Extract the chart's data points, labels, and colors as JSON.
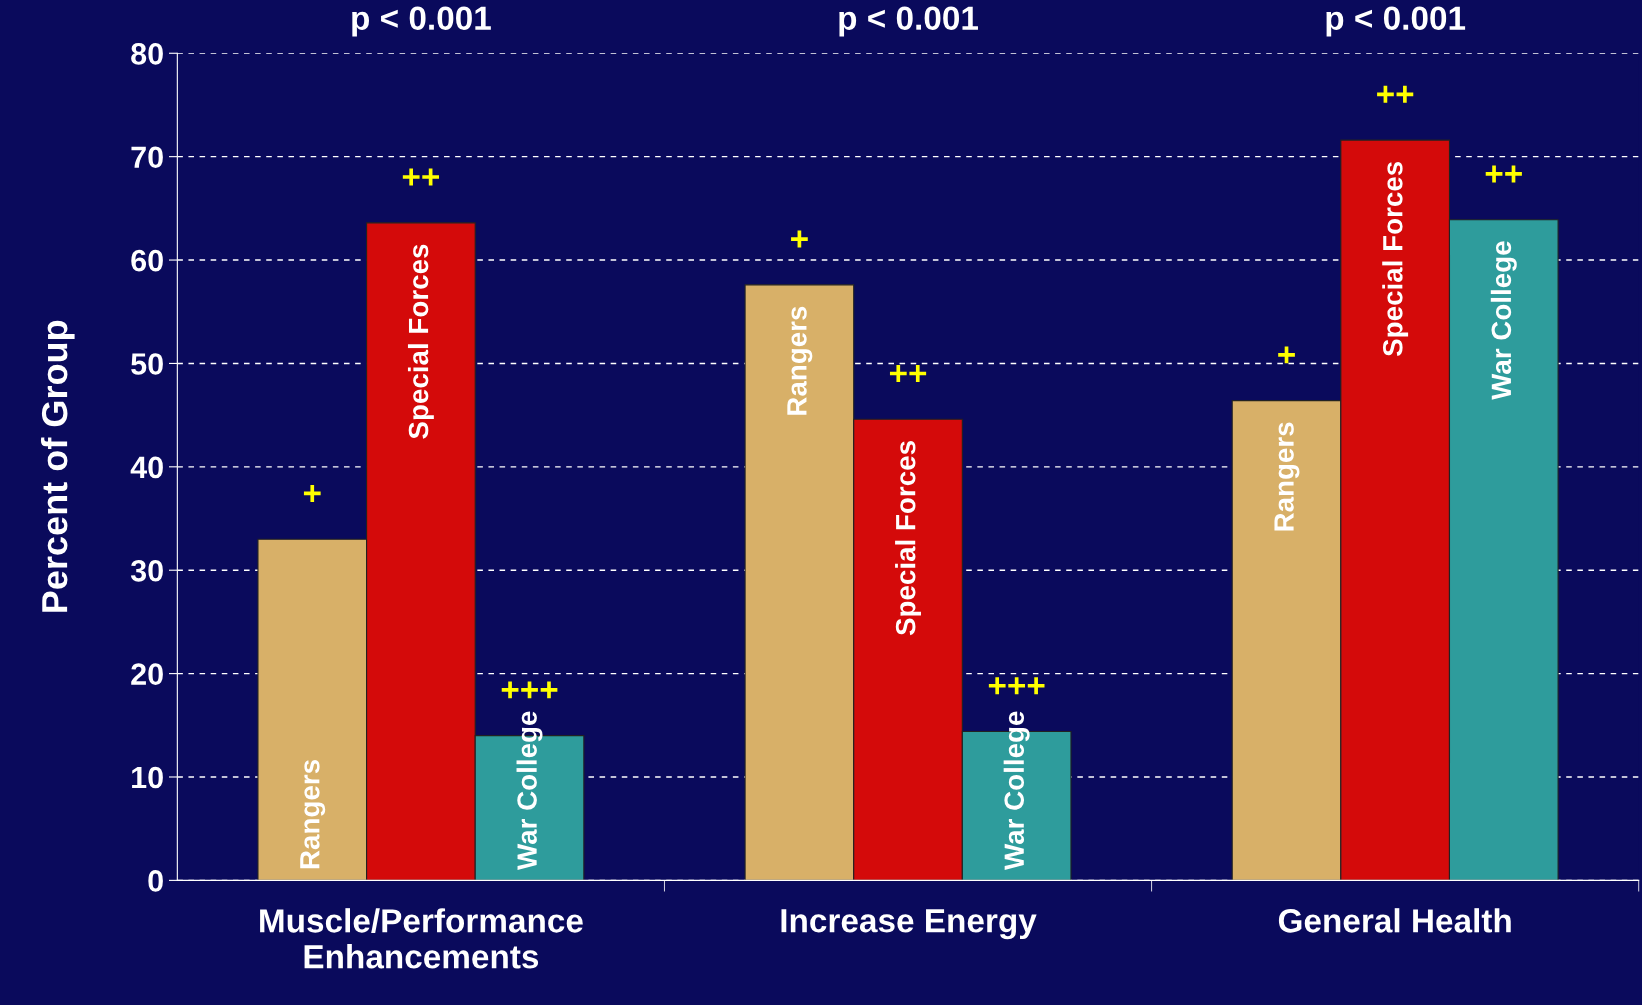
{
  "chart_data": {
    "type": "bar",
    "ylabel": "Percent of Group",
    "categories": [
      "Muscle/Performance\nEnhancements",
      "Increase Energy",
      "General Health"
    ],
    "series": [
      {
        "name": "Rangers",
        "color": "#d8b068",
        "values": [
          33.0,
          57.6,
          46.4
        ],
        "value_labels": [
          "+",
          "+",
          "+"
        ]
      },
      {
        "name": "Special Forces",
        "color": "#d40a0a",
        "values": [
          63.6,
          44.6,
          71.6
        ],
        "value_labels": [
          "++",
          "++",
          "++"
        ]
      },
      {
        "name": "War College",
        "color": "#2e9c9c",
        "values": [
          14.0,
          14.4,
          63.9
        ],
        "value_labels": [
          "+++",
          "+++",
          "++"
        ]
      }
    ],
    "ylim": [
      0,
      80
    ],
    "yticks": [
      0,
      10,
      20,
      30,
      40,
      50,
      60,
      70,
      80
    ],
    "grid": "y",
    "annotations": [
      "p < 0.001",
      "p < 0.001",
      "p < 0.001"
    ]
  }
}
